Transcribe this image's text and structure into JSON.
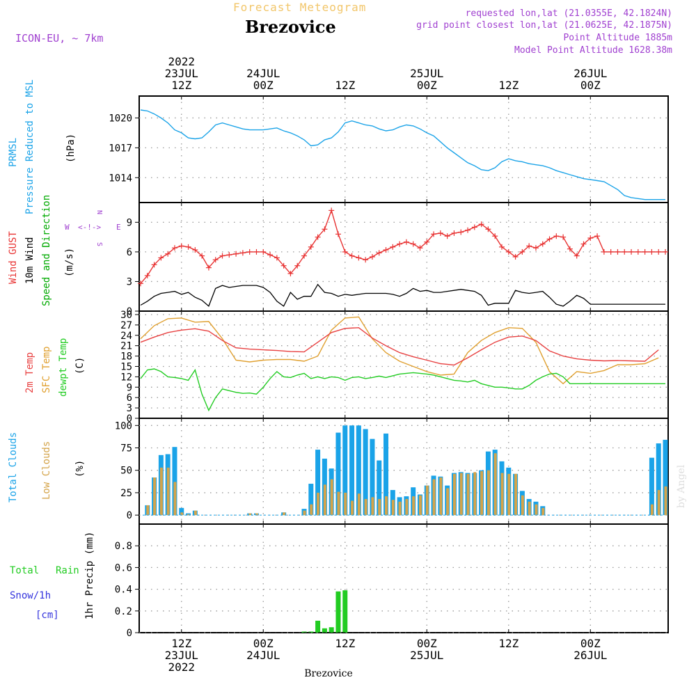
{
  "header": {
    "product": "Forecast Meteogram",
    "model": "ICON-EU, ~ 7km",
    "station": "Brezovice",
    "requested": "requested lon,lat (21.0355E, 42.1824N)",
    "grid_point": "grid point closest lon,lat (21.0625E, 42.1875N)",
    "point_altitude": "Point Altitude 1885m",
    "model_altitude": "Model Point Altitude 1628.38m",
    "footer_station": "Brezovice",
    "watermark": "by Angel"
  },
  "colors": {
    "pressure": "#1aa3e8",
    "gust": "#e83232",
    "wind": "#000000",
    "wind_dir_label": "#00aa00",
    "t2m": "#e84040",
    "sfc": "#e0a030",
    "dewpt": "#22cc22",
    "total_cloud": "#1aa3e8",
    "low_cloud": "#d4a44a",
    "rain": "#22cc22",
    "snow_label": "#3333dd",
    "compass": "#a040d0",
    "header_violet": "#a040d0"
  },
  "time_axis": {
    "top": [
      {
        "hour": 6,
        "lines": [
          "2022",
          "23JUL",
          "12Z"
        ]
      },
      {
        "hour": 18,
        "lines": [
          "24JUL",
          "00Z"
        ]
      },
      {
        "hour": 30,
        "lines": [
          "12Z"
        ]
      },
      {
        "hour": 42,
        "lines": [
          "25JUL",
          "00Z"
        ]
      },
      {
        "hour": 54,
        "lines": [
          "12Z"
        ]
      },
      {
        "hour": 66,
        "lines": [
          "26JUL",
          "00Z"
        ]
      }
    ],
    "bottom": [
      {
        "hour": 6,
        "lines": [
          "12Z",
          "23JUL",
          "2022"
        ]
      },
      {
        "hour": 18,
        "lines": [
          "00Z",
          "24JUL"
        ]
      },
      {
        "hour": 30,
        "lines": [
          "12Z"
        ]
      },
      {
        "hour": 42,
        "lines": [
          "00Z",
          "25JUL"
        ]
      },
      {
        "hour": 54,
        "lines": [
          "12Z"
        ]
      },
      {
        "hour": 66,
        "lines": [
          "00Z",
          "26JUL"
        ]
      }
    ]
  },
  "panels": {
    "pressure": {
      "label1": "PRMSL",
      "label2": "Pressure Reduced to MSL",
      "unit": "(hPa)",
      "ylim": [
        1011.5,
        1022.2
      ],
      "ticks": [
        1014,
        1017,
        1020
      ]
    },
    "wind": {
      "label_gust": "Wind GUST",
      "label_wind": "10m Wind",
      "label_dir": "Speed and Direction",
      "unit": "(m/s)",
      "ylim": [
        0,
        11
      ],
      "ticks": [
        0,
        3,
        6,
        9
      ],
      "compass": {
        "n": "N",
        "s": "S",
        "e": "E",
        "w": "W",
        "arrows": "<-!->"
      }
    },
    "temp": {
      "label1": "2m Temp",
      "label2": "SFC Temp",
      "label3": "dewpt Temp",
      "unit": "(C)",
      "ylim": [
        0,
        31
      ],
      "ticks": [
        0,
        3,
        6,
        9,
        12,
        15,
        18,
        21,
        24,
        27,
        30
      ]
    },
    "cloud": {
      "label1": "Total Clouds",
      "label2": "Low Clouds",
      "unit": "(%)",
      "ylim": [
        -10,
        108
      ],
      "ticks": [
        0,
        25,
        50,
        75,
        100
      ]
    },
    "precip": {
      "label_total": "Total",
      "label_rain": "Rain",
      "label_snow": "Snow/1h",
      "label_snow_unit": "[cm]",
      "unit": "1hr Precip (mm)",
      "ylim": [
        0,
        1.0
      ],
      "ticks": [
        "0",
        "0.2",
        "0.4",
        "0.6",
        "0.8"
      ]
    }
  },
  "chart_data": {
    "type": "line",
    "x_unit": "hours from 23JUL 06Z",
    "pressure": {
      "x": [
        0,
        1,
        2,
        3,
        4,
        5,
        6,
        7,
        8,
        9,
        10,
        11,
        12,
        13,
        14,
        15,
        16,
        17,
        18,
        19,
        20,
        21,
        22,
        23,
        24,
        25,
        26,
        27,
        28,
        29,
        30,
        31,
        32,
        33,
        34,
        35,
        36,
        37,
        38,
        39,
        40,
        41,
        42,
        43,
        44,
        45,
        46,
        47,
        48,
        49,
        50,
        51,
        52,
        53,
        54,
        55,
        56,
        57,
        58,
        59,
        60,
        61,
        62,
        63,
        64,
        65,
        66,
        67,
        68,
        69,
        70,
        71,
        72,
        73,
        74,
        75,
        76,
        77
      ],
      "values": [
        1020.8,
        1020.7,
        1020.4,
        1020.0,
        1019.5,
        1018.8,
        1018.5,
        1018.0,
        1017.9,
        1018.0,
        1018.6,
        1019.3,
        1019.5,
        1019.3,
        1019.1,
        1018.9,
        1018.8,
        1018.8,
        1018.8,
        1018.9,
        1019.0,
        1018.7,
        1018.5,
        1018.2,
        1017.8,
        1017.2,
        1017.3,
        1017.8,
        1018.0,
        1018.6,
        1019.5,
        1019.7,
        1019.5,
        1019.3,
        1019.2,
        1018.9,
        1018.7,
        1018.8,
        1019.1,
        1019.3,
        1019.2,
        1018.9,
        1018.5,
        1018.2,
        1017.6,
        1017.0,
        1016.5,
        1016.0,
        1015.5,
        1015.2,
        1014.8,
        1014.7,
        1015.0,
        1015.6,
        1015.9,
        1015.7,
        1015.6,
        1015.4,
        1015.3,
        1015.2,
        1015.0,
        1014.7,
        1014.5,
        1014.3,
        1014.1,
        1013.9,
        1013.8,
        1013.7,
        1013.6,
        1013.2,
        1012.8,
        1012.2,
        1012.0,
        1011.9,
        1011.8,
        1011.8,
        1011.8,
        1011.8
      ]
    },
    "gust": {
      "x": [
        0,
        1,
        2,
        3,
        4,
        5,
        6,
        7,
        8,
        9,
        10,
        11,
        12,
        13,
        14,
        15,
        16,
        17,
        18,
        19,
        20,
        21,
        22,
        23,
        24,
        25,
        26,
        27,
        28,
        29,
        30,
        31,
        32,
        33,
        34,
        35,
        36,
        37,
        38,
        39,
        40,
        41,
        42,
        43,
        44,
        45,
        46,
        47,
        48,
        49,
        50,
        51,
        52,
        53,
        54,
        55,
        56,
        57,
        58,
        59,
        60,
        61,
        62,
        63,
        64,
        65,
        66,
        67,
        68,
        69,
        70,
        71,
        72,
        73,
        74,
        75,
        76,
        77
      ],
      "values": [
        2.8,
        3.6,
        4.7,
        5.4,
        5.8,
        6.4,
        6.6,
        6.5,
        6.2,
        5.6,
        4.4,
        5.2,
        5.6,
        5.7,
        5.8,
        5.9,
        6.0,
        6.0,
        6.0,
        5.7,
        5.4,
        4.6,
        3.8,
        4.6,
        5.6,
        6.5,
        7.5,
        8.3,
        10.2,
        7.8,
        6.0,
        5.6,
        5.4,
        5.2,
        5.5,
        5.9,
        6.2,
        6.5,
        6.8,
        7.0,
        6.8,
        6.4,
        7.0,
        7.8,
        7.9,
        7.6,
        7.9,
        8.0,
        8.2,
        8.5,
        8.8,
        8.3,
        7.6,
        6.5,
        6.0,
        5.5,
        6.0,
        6.6,
        6.4,
        6.8,
        7.3,
        7.6,
        7.5,
        6.3,
        5.6,
        6.8,
        7.4,
        7.6,
        6.0,
        6.0,
        6.0,
        6.0,
        6.0,
        6.0,
        6.0,
        6.0,
        6.0,
        6.0
      ]
    },
    "wind": {
      "x": [
        0,
        1,
        2,
        3,
        4,
        5,
        6,
        7,
        8,
        9,
        10,
        11,
        12,
        13,
        14,
        15,
        16,
        17,
        18,
        19,
        20,
        21,
        22,
        23,
        24,
        25,
        26,
        27,
        28,
        29,
        30,
        31,
        32,
        33,
        34,
        35,
        36,
        37,
        38,
        39,
        40,
        41,
        42,
        43,
        44,
        45,
        46,
        47,
        48,
        49,
        50,
        51,
        52,
        53,
        54,
        55,
        56,
        57,
        58,
        59,
        60,
        61,
        62,
        63,
        64,
        65,
        66,
        67,
        68,
        69,
        70,
        71,
        72,
        73,
        74,
        75,
        76,
        77
      ],
      "values": [
        0.6,
        1.0,
        1.5,
        1.8,
        1.9,
        2.0,
        1.7,
        1.9,
        1.4,
        1.1,
        0.5,
        2.3,
        2.6,
        2.4,
        2.5,
        2.6,
        2.6,
        2.6,
        2.4,
        1.9,
        1.0,
        0.5,
        1.9,
        1.2,
        1.5,
        1.5,
        2.7,
        1.9,
        1.8,
        1.5,
        1.7,
        1.6,
        1.7,
        1.8,
        1.8,
        1.8,
        1.8,
        1.7,
        1.5,
        1.8,
        2.3,
        2.0,
        2.1,
        1.9,
        1.9,
        2.0,
        2.1,
        2.2,
        2.1,
        2.0,
        1.6,
        0.6,
        0.8,
        0.8,
        0.8,
        2.1,
        1.9,
        1.8,
        1.9,
        2.0,
        1.4,
        0.7,
        0.5,
        1.0,
        1.6,
        1.3,
        0.7,
        0.7,
        0.7,
        0.7,
        0.7,
        0.7,
        0.7,
        0.7,
        0.7,
        0.7,
        0.7,
        0.7
      ]
    },
    "t2m": {
      "x": [
        0,
        2,
        4,
        6,
        8,
        10,
        12,
        14,
        16,
        18,
        20,
        22,
        24,
        26,
        28,
        30,
        32,
        34,
        36,
        38,
        40,
        42,
        44,
        46,
        48,
        50,
        52,
        54,
        56,
        58,
        60,
        62,
        64,
        66,
        68,
        70,
        72,
        74,
        76
      ],
      "values": [
        22.0,
        23.5,
        24.8,
        25.5,
        25.9,
        25.2,
        22.5,
        20.4,
        20.0,
        19.8,
        19.6,
        19.3,
        19.2,
        22.0,
        24.8,
        26.0,
        26.2,
        23.2,
        21.0,
        19.0,
        17.8,
        16.8,
        15.8,
        15.4,
        17.5,
        19.8,
        22.0,
        23.5,
        23.8,
        22.5,
        19.5,
        18.0,
        17.2,
        16.8,
        16.6,
        16.7,
        16.6,
        16.5,
        19.8
      ]
    },
    "sfc": {
      "x": [
        0,
        2,
        4,
        6,
        8,
        10,
        12,
        14,
        16,
        18,
        20,
        22,
        24,
        26,
        28,
        30,
        32,
        34,
        36,
        38,
        40,
        42,
        44,
        46,
        48,
        50,
        52,
        54,
        56,
        58,
        60,
        62,
        64,
        66,
        68,
        70,
        72,
        74,
        76
      ],
      "values": [
        23.0,
        26.8,
        28.8,
        29.0,
        27.8,
        28.0,
        23.0,
        16.8,
        16.3,
        16.8,
        17.0,
        17.0,
        16.5,
        18.0,
        25.5,
        29.0,
        29.3,
        23.0,
        19.0,
        16.5,
        15.0,
        13.5,
        12.5,
        12.8,
        19.0,
        22.5,
        24.8,
        26.2,
        26.0,
        22.0,
        13.5,
        10.0,
        13.5,
        13.0,
        13.8,
        15.5,
        15.5,
        15.8,
        17.5
      ]
    },
    "dewpt": {
      "x": [
        0,
        1,
        2,
        3,
        4,
        5,
        6,
        7,
        8,
        9,
        10,
        11,
        12,
        13,
        14,
        15,
        16,
        17,
        18,
        19,
        20,
        21,
        22,
        23,
        24,
        25,
        26,
        27,
        28,
        29,
        30,
        31,
        32,
        33,
        34,
        35,
        36,
        37,
        38,
        39,
        40,
        41,
        42,
        43,
        44,
        45,
        46,
        47,
        48,
        49,
        50,
        51,
        52,
        53,
        54,
        55,
        56,
        57,
        58,
        59,
        60,
        61,
        62,
        63,
        64,
        65,
        66,
        67,
        68,
        69,
        70,
        71,
        72,
        73,
        74,
        75,
        76,
        77
      ],
      "values": [
        11.5,
        14.0,
        14.3,
        13.5,
        12.0,
        11.8,
        11.5,
        11.0,
        14.0,
        7.0,
        2.3,
        6.0,
        8.5,
        8.0,
        7.5,
        7.2,
        7.3,
        7.0,
        9.0,
        11.5,
        13.5,
        12.0,
        11.8,
        12.5,
        13.0,
        11.5,
        12.0,
        11.5,
        12.0,
        11.8,
        11.0,
        11.8,
        12.0,
        11.5,
        11.8,
        12.2,
        11.8,
        12.3,
        12.8,
        13.0,
        13.2,
        13.0,
        12.8,
        12.5,
        12.0,
        11.5,
        11.0,
        10.8,
        10.5,
        11.0,
        10.0,
        9.5,
        9.0,
        9.0,
        8.8,
        8.5,
        8.5,
        9.5,
        11.0,
        12.0,
        12.8,
        13.0,
        12.0,
        10.0,
        10.0,
        10.0,
        10.0,
        10.0,
        10.0,
        10.0,
        10.0,
        10.0,
        10.0,
        10.0,
        10.0,
        10.0,
        10.0,
        10.0
      ]
    },
    "total_cloud": {
      "x": [
        1,
        2,
        3,
        4,
        5,
        6,
        7,
        8,
        9,
        10,
        11,
        12,
        13,
        14,
        15,
        16,
        17,
        18,
        19,
        20,
        21,
        22,
        23,
        24,
        25,
        26,
        27,
        28,
        29,
        30,
        31,
        32,
        33,
        34,
        35,
        36,
        37,
        38,
        39,
        40,
        41,
        42,
        43,
        44,
        45,
        46,
        47,
        48,
        49,
        50,
        51,
        52,
        53,
        54,
        55,
        56,
        57,
        58,
        59,
        60,
        61,
        62,
        63,
        64,
        65,
        66,
        67,
        68,
        69,
        70,
        71,
        72,
        73,
        74,
        75,
        76,
        77
      ],
      "values": [
        11,
        42,
        67,
        68,
        76,
        8,
        2,
        5,
        0,
        0,
        0,
        0,
        0,
        0,
        0,
        2,
        2,
        0,
        0,
        0,
        3,
        0,
        0,
        7,
        35,
        73,
        63,
        52,
        92,
        100,
        100,
        100,
        96,
        85,
        61,
        91,
        28,
        20,
        21,
        31,
        23,
        33,
        44,
        43,
        33,
        47,
        48,
        47,
        47,
        50,
        71,
        73,
        60,
        53,
        46,
        27,
        18,
        15,
        10,
        0,
        0,
        0,
        0,
        0,
        0,
        0,
        0,
        0,
        0,
        0,
        0,
        0,
        0,
        0,
        64,
        80,
        84
      ]
    },
    "low_cloud": {
      "x": [
        1,
        2,
        3,
        4,
        5,
        6,
        7,
        8,
        9,
        10,
        11,
        12,
        13,
        14,
        15,
        16,
        17,
        18,
        19,
        20,
        21,
        22,
        23,
        24,
        25,
        26,
        27,
        28,
        29,
        30,
        31,
        32,
        33,
        34,
        35,
        36,
        37,
        38,
        39,
        40,
        41,
        42,
        43,
        44,
        45,
        46,
        47,
        48,
        49,
        50,
        51,
        52,
        53,
        54,
        55,
        56,
        57,
        58,
        59,
        60,
        61,
        62,
        63,
        64,
        65,
        66,
        67,
        68,
        69,
        70,
        71,
        72,
        73,
        74,
        75,
        76,
        77
      ],
      "values": [
        11,
        42,
        53,
        53,
        37,
        3,
        1,
        5,
        0,
        0,
        0,
        0,
        0,
        0,
        0,
        2,
        2,
        0,
        0,
        0,
        3,
        0,
        0,
        5,
        12,
        25,
        34,
        40,
        26,
        25,
        16,
        24,
        18,
        20,
        18,
        21,
        17,
        15,
        18,
        21,
        22,
        33,
        40,
        42,
        30,
        46,
        47,
        46,
        48,
        49,
        50,
        69,
        47,
        46,
        46,
        22,
        15,
        12,
        8,
        0,
        0,
        0,
        0,
        0,
        0,
        0,
        0,
        0,
        0,
        0,
        0,
        0,
        0,
        0,
        12,
        28,
        32
      ]
    },
    "precip": {
      "x": [
        24,
        25,
        26,
        27,
        28,
        29,
        30,
        31
      ],
      "values": [
        0.01,
        0.01,
        0.11,
        0.04,
        0.05,
        0.38,
        0.39,
        0.0
      ]
    }
  }
}
